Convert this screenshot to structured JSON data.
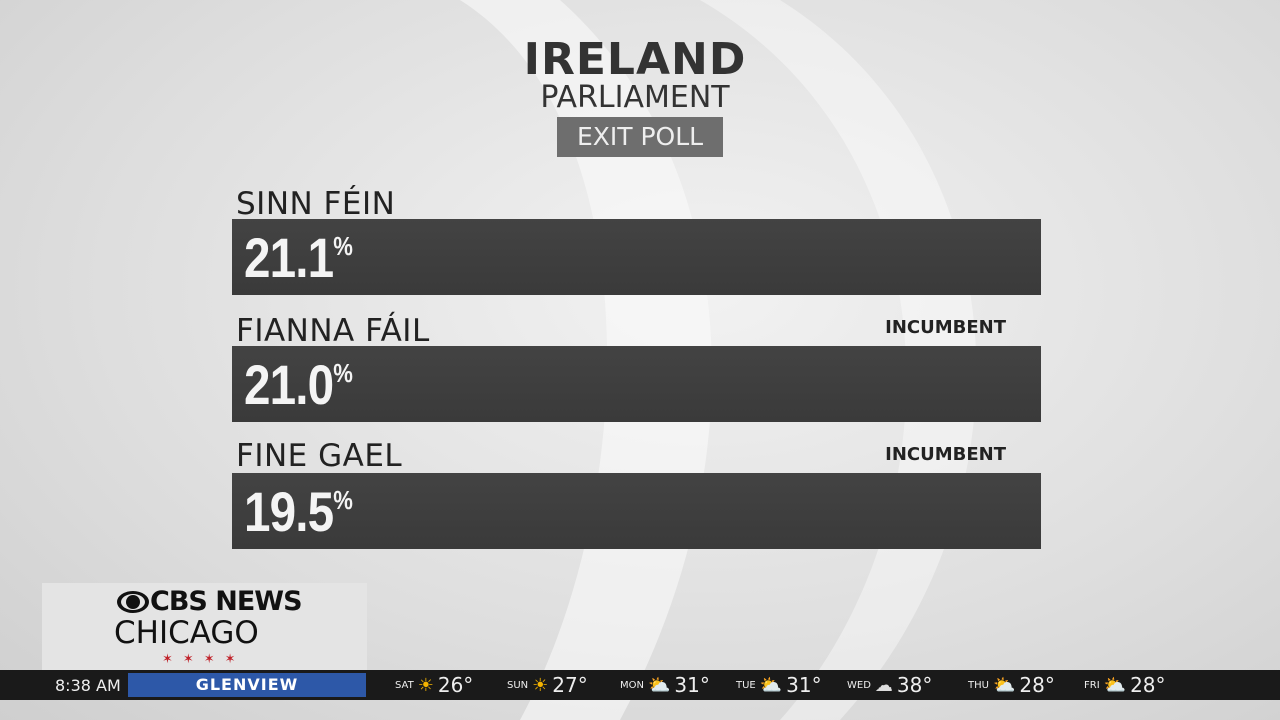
{
  "header": {
    "title": "IRELAND",
    "subtitle": "PARLIAMENT",
    "badge": "EXIT POLL"
  },
  "parties": [
    {
      "name": "SINN FÉIN",
      "result": "21.1",
      "unit": "%"
    },
    {
      "name": "FIANNA FÁIL",
      "tag": "INCUMBENT",
      "result": "21.0",
      "unit": "%"
    },
    {
      "name": "FINE GAEL",
      "tag": "INCUMBENT",
      "result": "19.5",
      "unit": "%"
    }
  ],
  "logo": {
    "brand": "CBS NEWS",
    "city": "CHICAGO"
  },
  "ticker": {
    "time": "8:38 AM",
    "location": "GLENVIEW",
    "forecast": [
      {
        "day": "SAT",
        "temp": "26°"
      },
      {
        "day": "SUN",
        "temp": "27°"
      },
      {
        "day": "MON",
        "temp": "31°"
      },
      {
        "day": "TUE",
        "temp": "31°"
      },
      {
        "day": "WED",
        "temp": "38°"
      },
      {
        "day": "THU",
        "temp": "28°"
      },
      {
        "day": "FRI",
        "temp": "28°"
      }
    ]
  }
}
